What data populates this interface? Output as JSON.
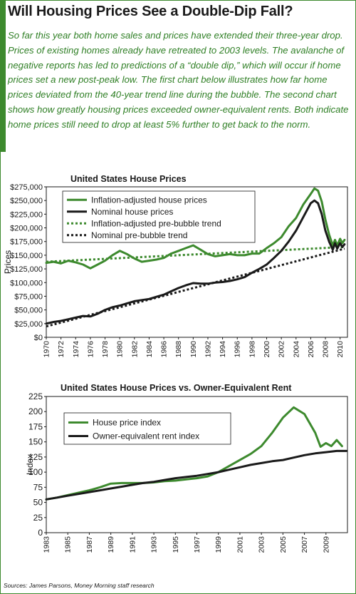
{
  "header": {
    "headline": "Will Housing Prices See a Double-Dip Fall?",
    "intro": "So far this year both home sales and prices have extended their three-year drop. Prices of existing homes already have retreated to 2003 levels. The avalanche of negative reports has led to predictions of a “double dip,” which will occur if home prices set a new post-peak low. The first chart below illustrates how far home prices deviated from the 40-year trend line during the bubble. The second chart shows how greatly housing prices exceeded owner-equivalent rents. Both indicate home prices still need to drop at least 5% further to get back to the norm."
  },
  "source": "Sources: James Parsons, Money Morning staff research",
  "colors": {
    "green": "#3d8a2e",
    "black": "#1a1a1a",
    "text_green": "#2f7f25",
    "frame": "#3d8a2e"
  },
  "chart_data": [
    {
      "type": "line",
      "title": "United States House Prices",
      "ylabel": "Prices",
      "xlabel": "",
      "xlim": [
        1970,
        2011
      ],
      "ylim": [
        0,
        275000
      ],
      "x_ticks": [
        1970,
        1972,
        1974,
        1976,
        1978,
        1980,
        1982,
        1984,
        1986,
        1988,
        1990,
        1992,
        1994,
        1996,
        1998,
        2000,
        2002,
        2004,
        2006,
        2008,
        2010
      ],
      "y_ticks": [
        0,
        25000,
        50000,
        75000,
        100000,
        125000,
        150000,
        175000,
        200000,
        225000,
        250000,
        275000
      ],
      "y_tick_labels": [
        "$0",
        "$25,000",
        "$50,000",
        "$75,000",
        "$100,000",
        "$125,000",
        "$150,000",
        "$175,000",
        "$200,000",
        "$225,000",
        "$250,000",
        "$275,000"
      ],
      "grid": false,
      "legend": "top-left",
      "series": [
        {
          "name": "Inflation-adjusted house prices",
          "color": "#3d8a2e",
          "style": "solid",
          "points": [
            [
              1970,
              136000
            ],
            [
              1971,
              138000
            ],
            [
              1972,
              135000
            ],
            [
              1973,
              140000
            ],
            [
              1974,
              137000
            ],
            [
              1975,
              133000
            ],
            [
              1976,
              126000
            ],
            [
              1977,
              133000
            ],
            [
              1978,
              140000
            ],
            [
              1979,
              150000
            ],
            [
              1980,
              158000
            ],
            [
              1981,
              152000
            ],
            [
              1982,
              144000
            ],
            [
              1983,
              138000
            ],
            [
              1984,
              140000
            ],
            [
              1985,
              142000
            ],
            [
              1986,
              145000
            ],
            [
              1987,
              153000
            ],
            [
              1988,
              158000
            ],
            [
              1989,
              163000
            ],
            [
              1990,
              168000
            ],
            [
              1991,
              160000
            ],
            [
              1992,
              152000
            ],
            [
              1993,
              148000
            ],
            [
              1994,
              150000
            ],
            [
              1995,
              152000
            ],
            [
              1996,
              150000
            ],
            [
              1997,
              150000
            ],
            [
              1998,
              153000
            ],
            [
              1999,
              153000
            ],
            [
              2000,
              163000
            ],
            [
              2001,
              172000
            ],
            [
              2002,
              183000
            ],
            [
              2003,
              203000
            ],
            [
              2004,
              218000
            ],
            [
              2005,
              243000
            ],
            [
              2006,
              262000
            ],
            [
              2006.5,
              272000
            ],
            [
              2007,
              268000
            ],
            [
              2007.5,
              248000
            ],
            [
              2008,
              215000
            ],
            [
              2008.5,
              188000
            ],
            [
              2009,
              168000
            ],
            [
              2009.3,
              178000
            ],
            [
              2009.6,
              168000
            ],
            [
              2010,
              180000
            ],
            [
              2010.3,
              172000
            ],
            [
              2010.6,
              178000
            ]
          ]
        },
        {
          "name": "Nominal house prices",
          "color": "#1a1a1a",
          "style": "solid",
          "points": [
            [
              1970,
              25000
            ],
            [
              1971,
              28000
            ],
            [
              1972,
              30000
            ],
            [
              1973,
              33000
            ],
            [
              1974,
              36000
            ],
            [
              1975,
              39000
            ],
            [
              1976,
              38000
            ],
            [
              1977,
              43000
            ],
            [
              1978,
              50000
            ],
            [
              1979,
              55000
            ],
            [
              1980,
              58000
            ],
            [
              1981,
              62000
            ],
            [
              1982,
              66000
            ],
            [
              1983,
              68000
            ],
            [
              1984,
              70000
            ],
            [
              1985,
              74000
            ],
            [
              1986,
              78000
            ],
            [
              1987,
              84000
            ],
            [
              1988,
              90000
            ],
            [
              1989,
              95000
            ],
            [
              1990,
              99000
            ],
            [
              1991,
              98000
            ],
            [
              1992,
              98000
            ],
            [
              1993,
              100000
            ],
            [
              1994,
              101000
            ],
            [
              1995,
              103000
            ],
            [
              1996,
              106000
            ],
            [
              1997,
              110000
            ],
            [
              1998,
              118000
            ],
            [
              1999,
              125000
            ],
            [
              2000,
              133000
            ],
            [
              2001,
              145000
            ],
            [
              2002,
              158000
            ],
            [
              2003,
              175000
            ],
            [
              2004,
              195000
            ],
            [
              2005,
              220000
            ],
            [
              2006,
              245000
            ],
            [
              2006.5,
              250000
            ],
            [
              2007,
              245000
            ],
            [
              2007.5,
              225000
            ],
            [
              2008,
              195000
            ],
            [
              2008.5,
              175000
            ],
            [
              2009,
              160000
            ],
            [
              2009.3,
              172000
            ],
            [
              2009.6,
              162000
            ],
            [
              2010,
              172000
            ],
            [
              2010.3,
              165000
            ],
            [
              2010.6,
              170000
            ]
          ]
        },
        {
          "name": "Inflation-adjusted pre-bubble trend",
          "color": "#3d8a2e",
          "style": "dotted",
          "points": [
            [
              1970,
              138000
            ],
            [
              2010.6,
              165000
            ]
          ]
        },
        {
          "name": "Nominal pre-bubble trend",
          "color": "#1a1a1a",
          "style": "dotted",
          "points": [
            [
              1970,
              20000
            ],
            [
              2010.6,
              162000
            ]
          ]
        }
      ]
    },
    {
      "type": "line",
      "title": "United States House Prices vs. Owner-Equivalent Rent",
      "ylabel": "Index",
      "xlabel": "",
      "xlim": [
        1983,
        2011
      ],
      "ylim": [
        0,
        225
      ],
      "x_ticks": [
        1983,
        1985,
        1987,
        1989,
        1991,
        1993,
        1995,
        1997,
        1999,
        2001,
        2003,
        2005,
        2007,
        2009
      ],
      "y_ticks": [
        0,
        25,
        50,
        75,
        100,
        125,
        150,
        175,
        200,
        225
      ],
      "grid": false,
      "legend": "top-left",
      "series": [
        {
          "name": "House price index",
          "color": "#3d8a2e",
          "style": "solid",
          "points": [
            [
              1983,
              55
            ],
            [
              1984,
              58
            ],
            [
              1985,
              62
            ],
            [
              1986,
              66
            ],
            [
              1987,
              70
            ],
            [
              1988,
              75
            ],
            [
              1989,
              81
            ],
            [
              1990,
              82
            ],
            [
              1991,
              82
            ],
            [
              1992,
              82
            ],
            [
              1993,
              83
            ],
            [
              1994,
              85
            ],
            [
              1995,
              86
            ],
            [
              1996,
              88
            ],
            [
              1997,
              90
            ],
            [
              1998,
              93
            ],
            [
              1999,
              100
            ],
            [
              2000,
              110
            ],
            [
              2001,
              120
            ],
            [
              2002,
              130
            ],
            [
              2003,
              143
            ],
            [
              2004,
              165
            ],
            [
              2005,
              190
            ],
            [
              2006,
              207
            ],
            [
              2007,
              196
            ],
            [
              2008,
              165
            ],
            [
              2008.5,
              142
            ],
            [
              2009,
              148
            ],
            [
              2009.5,
              143
            ],
            [
              2010,
              153
            ],
            [
              2010.5,
              143
            ]
          ]
        },
        {
          "name": "Owner-equivalent rent index",
          "color": "#1a1a1a",
          "style": "solid",
          "points": [
            [
              1983,
              55
            ],
            [
              1984,
              58
            ],
            [
              1985,
              61
            ],
            [
              1986,
              64
            ],
            [
              1987,
              67
            ],
            [
              1988,
              70
            ],
            [
              1989,
              73
            ],
            [
              1990,
              76
            ],
            [
              1991,
              79
            ],
            [
              1992,
              82
            ],
            [
              1993,
              84
            ],
            [
              1994,
              87
            ],
            [
              1995,
              90
            ],
            [
              1996,
              92
            ],
            [
              1997,
              94
            ],
            [
              1998,
              97
            ],
            [
              1999,
              100
            ],
            [
              2000,
              104
            ],
            [
              2001,
              108
            ],
            [
              2002,
              112
            ],
            [
              2003,
              115
            ],
            [
              2004,
              118
            ],
            [
              2005,
              120
            ],
            [
              2006,
              124
            ],
            [
              2007,
              128
            ],
            [
              2008,
              131
            ],
            [
              2009,
              133
            ],
            [
              2010,
              135
            ],
            [
              2010.9,
              135
            ]
          ]
        }
      ]
    }
  ]
}
